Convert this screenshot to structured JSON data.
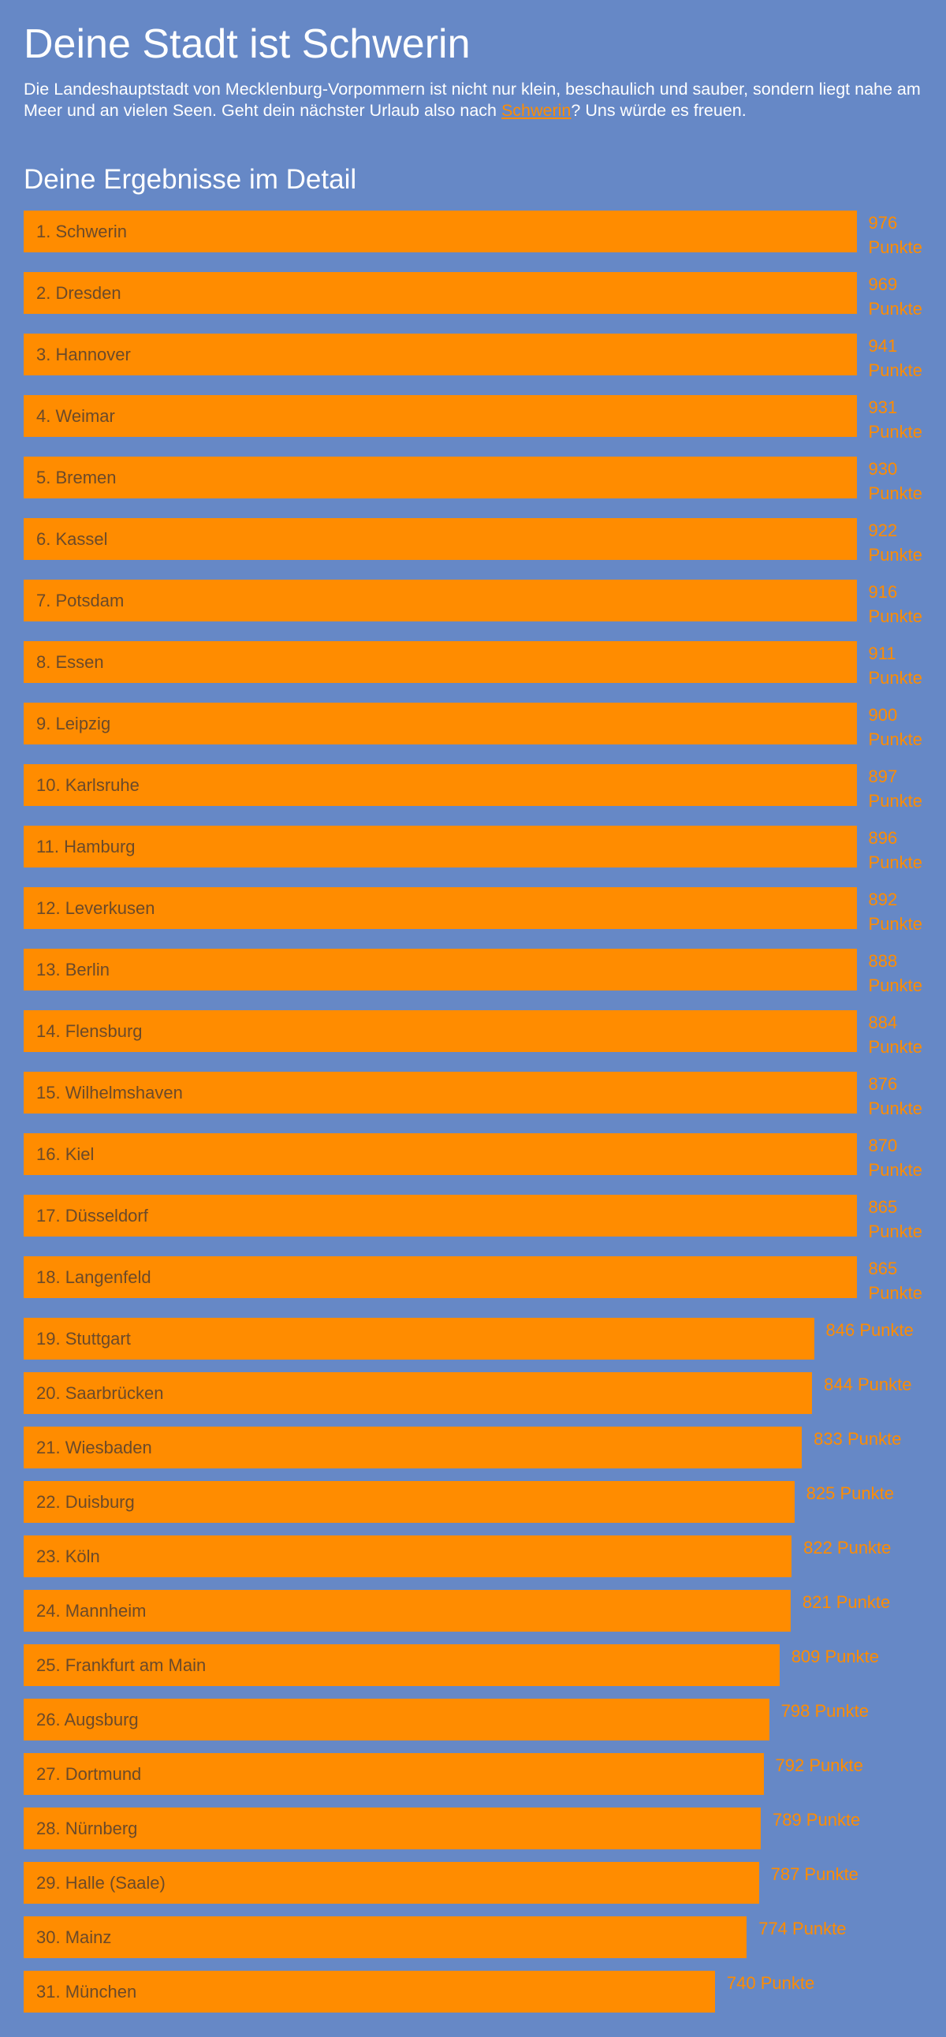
{
  "header": {
    "title": "Deine Stadt ist Schwerin",
    "text_before": "Die Landeshauptstadt von Mecklenburg-Vorpommern ist nicht nur klein, beschaulich und sauber, sondern liegt nahe am Meer und an vielen Seen. Geht dein nächster Urlaub also nach ",
    "link": "Schwerin",
    "text_after": "? Uns würde es freuen."
  },
  "chart_data": {
    "type": "bar",
    "orientation": "horizontal",
    "title": "Deine Ergebnisse im Detail",
    "categories": [
      "1. Schwerin",
      "2. Dresden",
      "3. Hannover",
      "4. Weimar",
      "5. Bremen",
      "6. Kassel",
      "7. Potsdam",
      "8. Essen",
      "9. Leipzig",
      "10. Karlsruhe",
      "11. Hamburg",
      "12. Leverkusen",
      "13. Berlin",
      "14. Flensburg",
      "15. Wilhelmshaven",
      "16. Kiel",
      "17. Düsseldorf",
      "18. Langenfeld",
      "19. Stuttgart",
      "20. Saarbrücken",
      "21. Wiesbaden",
      "22. Duisburg",
      "23. Köln",
      "24. Mannheim",
      "25. Frankfurt am Main",
      "26. Augsburg",
      "27. Dortmund",
      "28. Nürnberg",
      "29. Halle (Saale)",
      "30. Mainz",
      "31. München"
    ],
    "values": [
      976,
      969,
      941,
      931,
      930,
      922,
      916,
      911,
      900,
      897,
      896,
      892,
      888,
      884,
      876,
      870,
      865,
      865,
      846,
      844,
      833,
      825,
      822,
      821,
      809,
      798,
      792,
      789,
      787,
      774,
      740
    ],
    "value_labels": [
      "976 Punkte",
      "969 Punkte",
      "941 Punkte",
      "931 Punkte",
      "930 Punkte",
      "922 Punkte",
      "916 Punkte",
      "911 Punkte",
      "900 Punkte",
      "897 Punkte",
      "896 Punkte",
      "892 Punkte",
      "888 Punkte",
      "884 Punkte",
      "876 Punkte",
      "870 Punkte",
      "865 Punkte",
      "865 Punkte",
      "846 Punkte",
      "844 Punkte",
      "833 Punkte",
      "825 Punkte",
      "822 Punkte",
      "821 Punkte",
      "809 Punkte",
      "798 Punkte",
      "792 Punkte",
      "789 Punkte",
      "787 Punkte",
      "774 Punkte",
      "740 Punkte"
    ],
    "color": "#ff8c00",
    "xlim": [
      0,
      962
    ]
  }
}
